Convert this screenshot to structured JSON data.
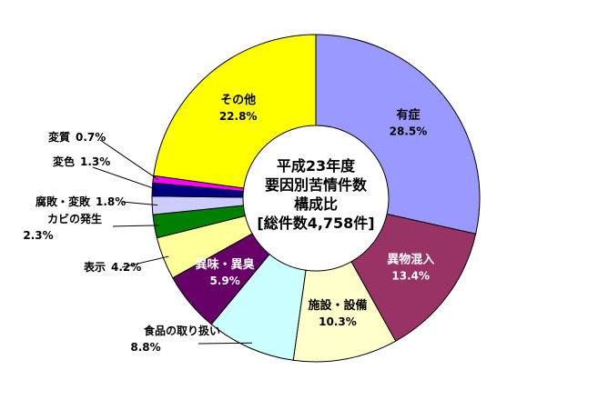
{
  "chart_data": {
    "type": "pie",
    "variant": "donut",
    "center_text": [
      "平成23年度",
      "要因別苦情件数",
      "構成比",
      "[総件数4,758件]"
    ],
    "slices": [
      {
        "label": "有症",
        "percent_label": "28.5%",
        "value": 28.5,
        "color": "#9999ff",
        "label_position": "inside"
      },
      {
        "label": "異物混入",
        "percent_label": "13.4%",
        "value": 13.4,
        "color": "#993366",
        "label_position": "inside"
      },
      {
        "label": "施設・設備",
        "percent_label": "10.3%",
        "value": 10.3,
        "color": "#ffffcc",
        "label_position": "inside"
      },
      {
        "label": "食品の取り扱い",
        "percent_label": "8.8%",
        "value": 8.8,
        "color": "#ccffff",
        "label_position": "outside"
      },
      {
        "label": "異味・異臭",
        "percent_label": "5.9%",
        "value": 5.9,
        "color": "#660066",
        "label_position": "inside"
      },
      {
        "label": "表示",
        "percent_label": "4.2%",
        "value": 4.2,
        "color": "#ffff99",
        "label_position": "outside"
      },
      {
        "label": "カビの発生",
        "percent_label": "2.3%",
        "value": 2.3,
        "color": "#008000",
        "label_position": "outside"
      },
      {
        "label": "腐敗・変敗",
        "percent_label": "1.8%",
        "value": 1.8,
        "color": "#ccccff",
        "label_position": "outside"
      },
      {
        "label": "変色",
        "percent_label": "1.3%",
        "value": 1.3,
        "color": "#000080",
        "label_position": "outside"
      },
      {
        "label": "変質",
        "percent_label": "0.7%",
        "value": 0.7,
        "color": "#ff00ff",
        "label_position": "outside"
      },
      {
        "label": "その他",
        "percent_label": "22.8%",
        "value": 22.8,
        "color": "#ffff00",
        "label_position": "inside"
      }
    ]
  }
}
